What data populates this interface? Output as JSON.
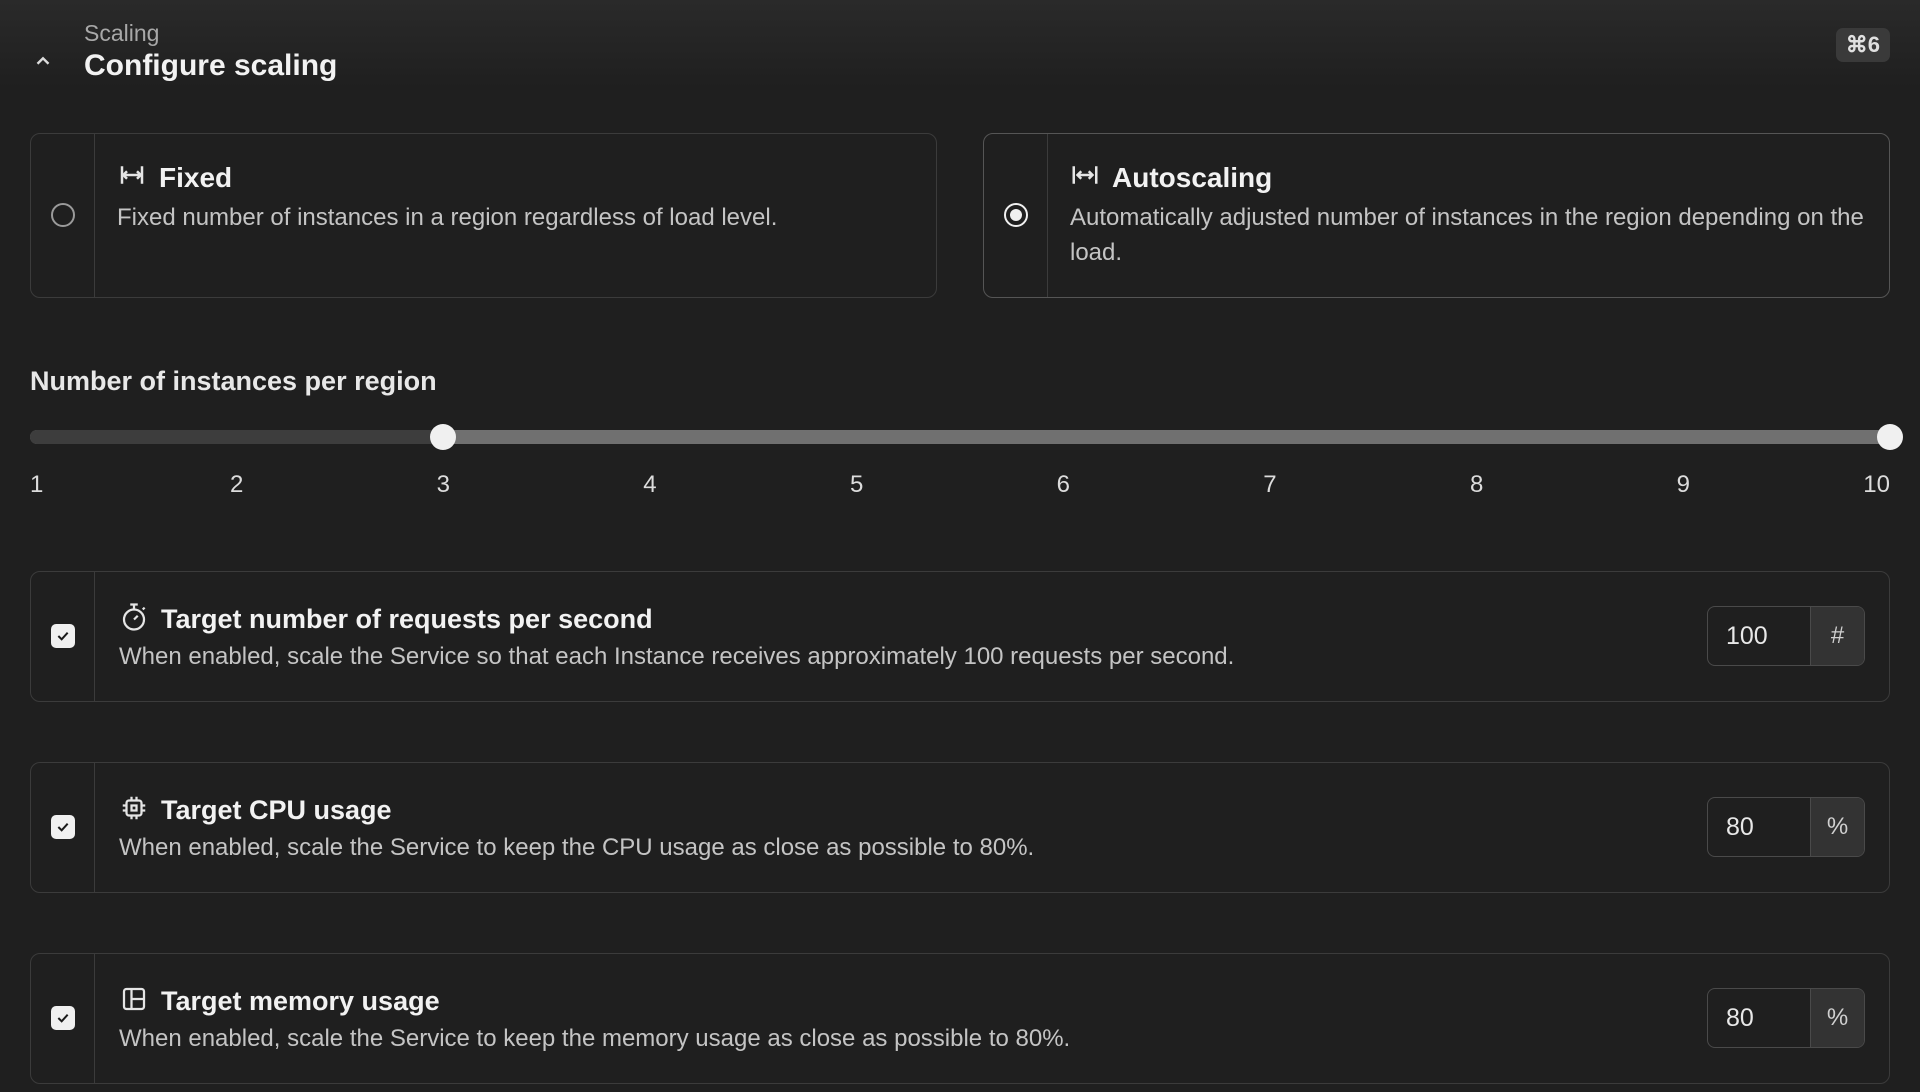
{
  "header": {
    "breadcrumb": "Scaling",
    "title": "Configure scaling",
    "shortcut": "⌘6"
  },
  "options": {
    "fixed": {
      "title": "Fixed",
      "desc": "Fixed number of instances in a region regardless of load level.",
      "selected": false
    },
    "autoscaling": {
      "title": "Autoscaling",
      "desc": "Automatically adjusted number of instances in the region depending on the load.",
      "selected": true
    }
  },
  "slider": {
    "label": "Number of instances per region",
    "min": 1,
    "max": 10,
    "low": 3,
    "high": 10,
    "ticks": [
      "1",
      "2",
      "3",
      "4",
      "5",
      "6",
      "7",
      "8",
      "9",
      "10"
    ]
  },
  "targets": {
    "rps": {
      "title": "Target number of requests per second",
      "desc": "When enabled, scale the Service so that each Instance receives approximately 100 requests per second.",
      "value": "100",
      "unit": "#",
      "checked": true
    },
    "cpu": {
      "title": "Target CPU usage",
      "desc": "When enabled, scale the Service to keep the CPU usage as close as possible to 80%.",
      "value": "80",
      "unit": "%",
      "checked": true
    },
    "mem": {
      "title": "Target memory usage",
      "desc": "When enabled, scale the Service to keep the memory usage as close as possible to 80%.",
      "value": "80",
      "unit": "%",
      "checked": true
    }
  },
  "colors": {
    "bg": "#1f1f1f",
    "border": "#3b3b3b",
    "text": "#e5e5e5",
    "muted": "#c4c4c4",
    "rail": "#707070",
    "fill": "#3d3d3d",
    "thumb": "#f0f0f0"
  }
}
